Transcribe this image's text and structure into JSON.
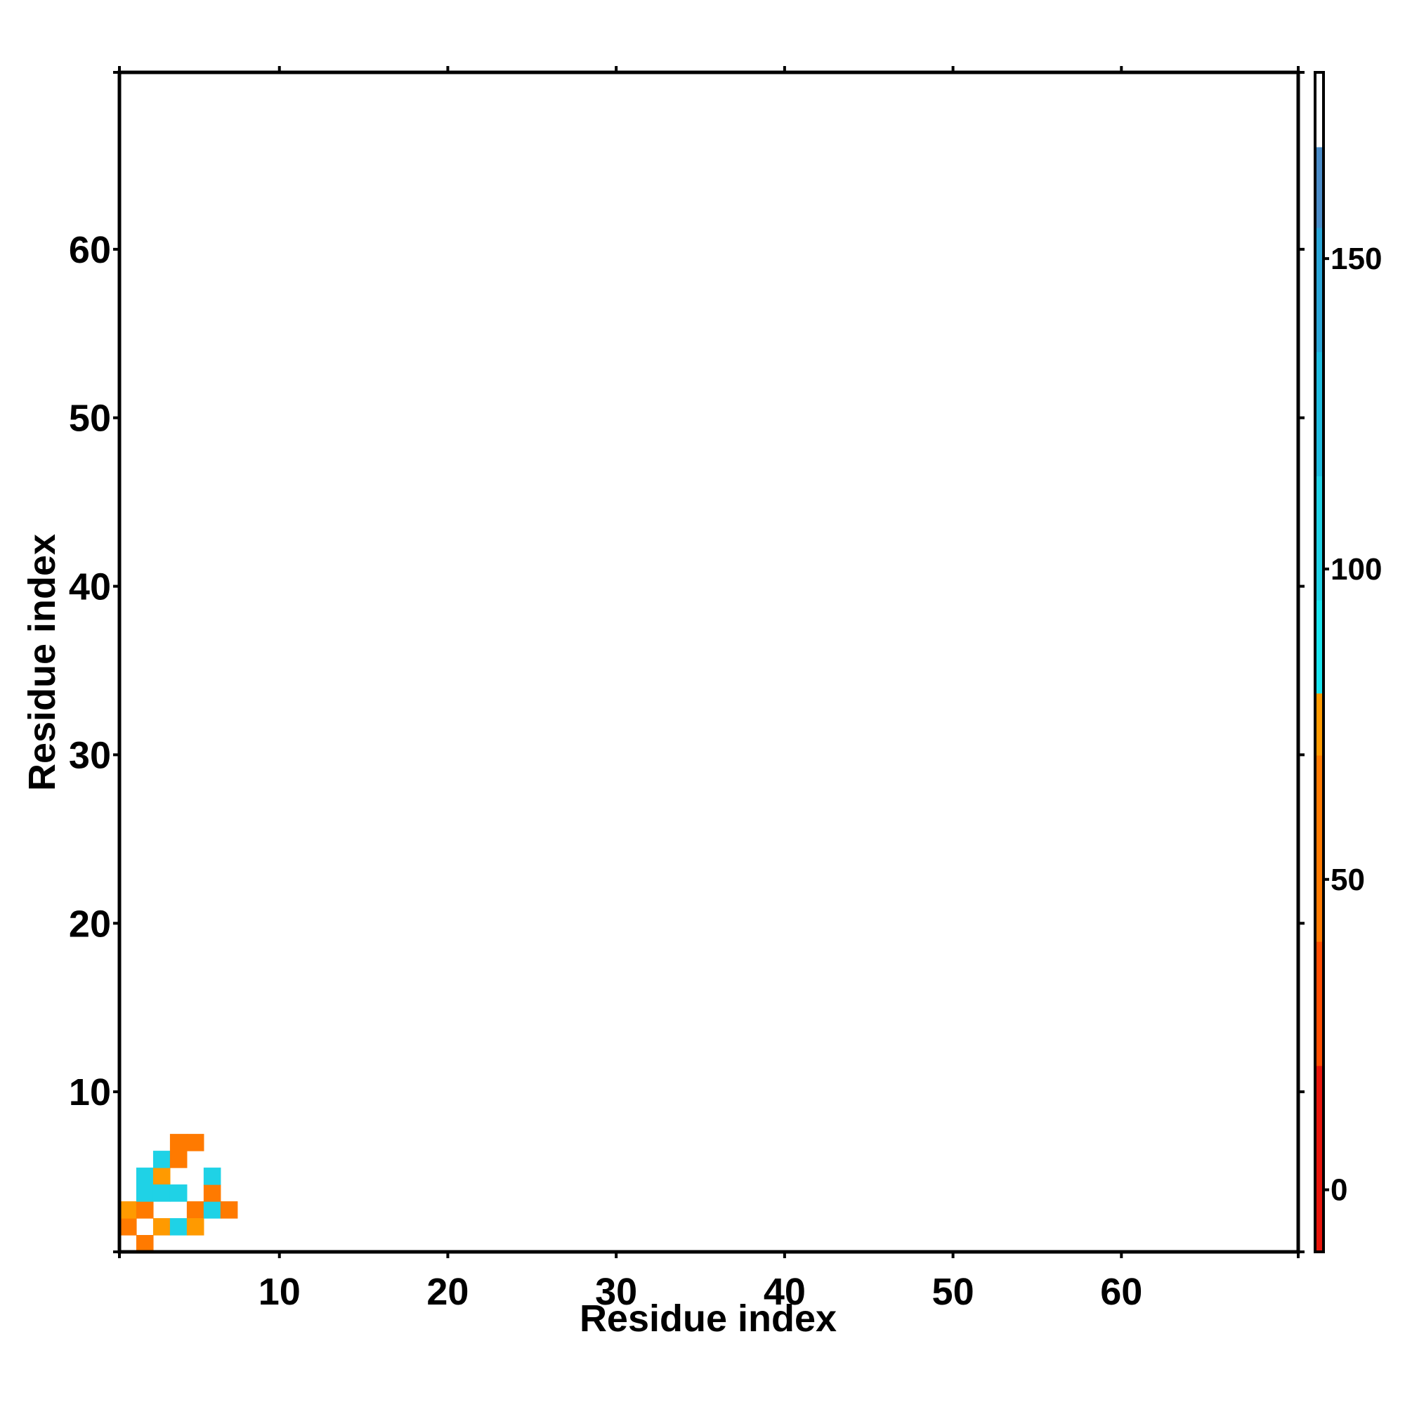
{
  "chart_data": {
    "type": "heatmap",
    "title": "",
    "xlabel": "Residue index",
    "ylabel": "Residue index",
    "xlim": [
      0.5,
      70.5
    ],
    "ylim": [
      0.5,
      70.5
    ],
    "xticks": [
      10,
      20,
      30,
      40,
      50,
      60
    ],
    "yticks": [
      10,
      20,
      30,
      40,
      50,
      60
    ],
    "x_tick_labels": [
      "10",
      "20",
      "30",
      "40",
      "50",
      "60"
    ],
    "y_tick_labels": [
      "10",
      "20",
      "30",
      "40",
      "50",
      "60"
    ],
    "grid": false,
    "colorbar": {
      "range": [
        -10,
        180
      ],
      "ticks": [
        0,
        50,
        100,
        150
      ],
      "tick_labels": [
        "0",
        "50",
        "100",
        "150"
      ],
      "bands": [
        {
          "from": -10,
          "to": 20,
          "color": "#e8140a"
        },
        {
          "from": 20,
          "to": 40,
          "color": "#ff4d00"
        },
        {
          "from": 40,
          "to": 70,
          "color": "#ff7a00"
        },
        {
          "from": 70,
          "to": 80,
          "color": "#ff9a00"
        },
        {
          "from": 80,
          "to": 95,
          "color": "#19e6f0"
        },
        {
          "from": 95,
          "to": 115,
          "color": "#1fd2e6"
        },
        {
          "from": 115,
          "to": 135,
          "color": "#1ebce0"
        },
        {
          "from": 135,
          "to": 155,
          "color": "#2aa6d8"
        },
        {
          "from": 155,
          "to": 168,
          "color": "#4a8cc8"
        },
        {
          "from": 168,
          "to": 180,
          "color": "#ffffff"
        }
      ]
    },
    "cells_description": "cells listed as [i, j, value] with value in colorbar units",
    "cells": [
      [
        1,
        2,
        55
      ],
      [
        1,
        3,
        72
      ],
      [
        2,
        1,
        60
      ],
      [
        2,
        3,
        55
      ],
      [
        3,
        2,
        72
      ],
      [
        2,
        4,
        105
      ],
      [
        2,
        5,
        110
      ],
      [
        3,
        5,
        75
      ],
      [
        4,
        2,
        110
      ],
      [
        5,
        3,
        60
      ],
      [
        3,
        6,
        105
      ],
      [
        4,
        6,
        60
      ],
      [
        5,
        2,
        72
      ],
      [
        3,
        4,
        110
      ],
      [
        4,
        4,
        110
      ],
      [
        4,
        7,
        55
      ],
      [
        5,
        7,
        55
      ],
      [
        6,
        3,
        110
      ],
      [
        6,
        4,
        55
      ],
      [
        6,
        5,
        110
      ],
      [
        7,
        3,
        55
      ]
    ]
  }
}
